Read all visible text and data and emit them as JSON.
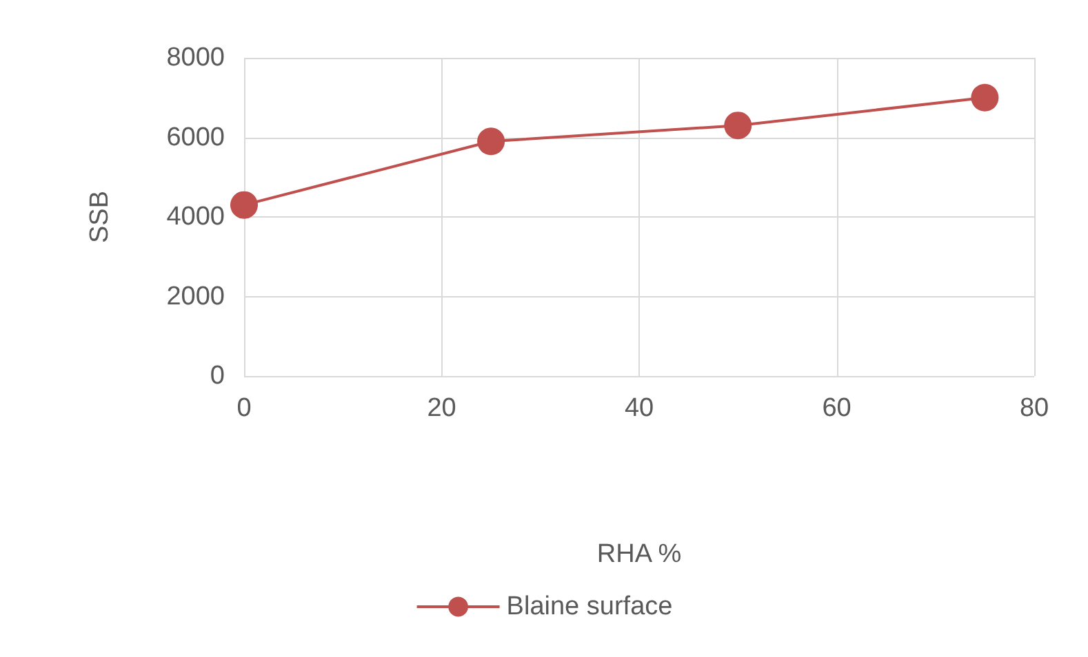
{
  "chart_data": {
    "type": "line",
    "xlabel": "RHA %",
    "ylabel": "SSB",
    "x": [
      0,
      25,
      50,
      75
    ],
    "series": [
      {
        "name": "Blaine surface",
        "color": "#c0504d",
        "values": [
          4300,
          5900,
          6300,
          7000
        ]
      }
    ],
    "xlim": [
      0,
      80
    ],
    "xticks": [
      0,
      20,
      40,
      60,
      80
    ],
    "ylim": [
      0,
      8000
    ],
    "yticks": [
      0,
      2000,
      4000,
      6000,
      8000
    ],
    "grid": true,
    "legend": "bottom",
    "marker": "circle",
    "line_style": "solid"
  }
}
